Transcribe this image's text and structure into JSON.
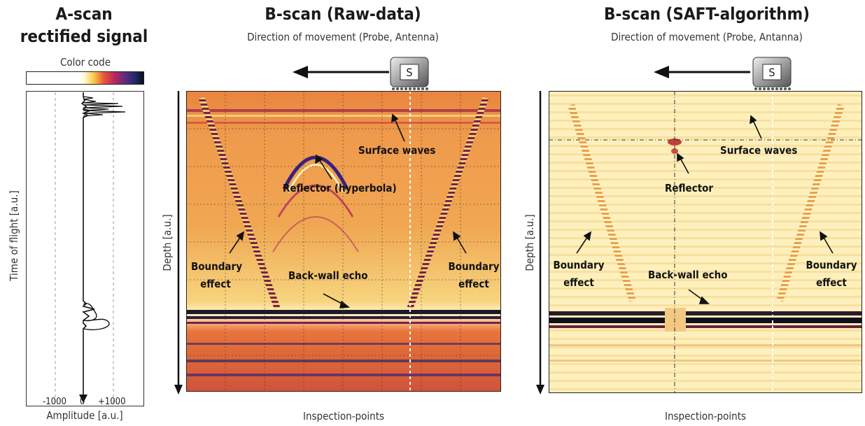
{
  "ascan": {
    "title_line1": "A-scan",
    "title_line2": "rectified signal",
    "color_code_label": "Color code",
    "y_label": "Time of flight [a.u.]",
    "x_label": "Amplitude [a.u.]",
    "ticks": [
      "-1000",
      "0",
      "+1000"
    ]
  },
  "raw": {
    "title": "B-scan (Raw-data)",
    "subtitle": "Direction of movement (Probe, Antenna)",
    "probe_letter": "S",
    "y_label": "Depth [a.u.]",
    "x_label": "Inspection-points",
    "annotations": {
      "surface_waves": "Surface waves",
      "reflector": "Reflector (hyperbola)",
      "boundary_left_1": "Boundary",
      "boundary_left_2": "effect",
      "boundary_right_1": "Boundary",
      "boundary_right_2": "effect",
      "backwall": "Back-wall echo"
    }
  },
  "saft": {
    "title": "B-scan (SAFT-algorithm)",
    "subtitle": "Direction of movement (Probe, Antanna)",
    "probe_letter": "S",
    "y_label": "Depth [a.u.]",
    "x_label": "Inspection-points",
    "annotations": {
      "surface_waves": "Surface waves",
      "reflector": "Reflector",
      "boundary_left_1": "Boundary",
      "boundary_left_2": "effect",
      "boundary_right_1": "Boundary",
      "boundary_right_2": "effect",
      "backwall": "Back-wall echo"
    }
  }
}
